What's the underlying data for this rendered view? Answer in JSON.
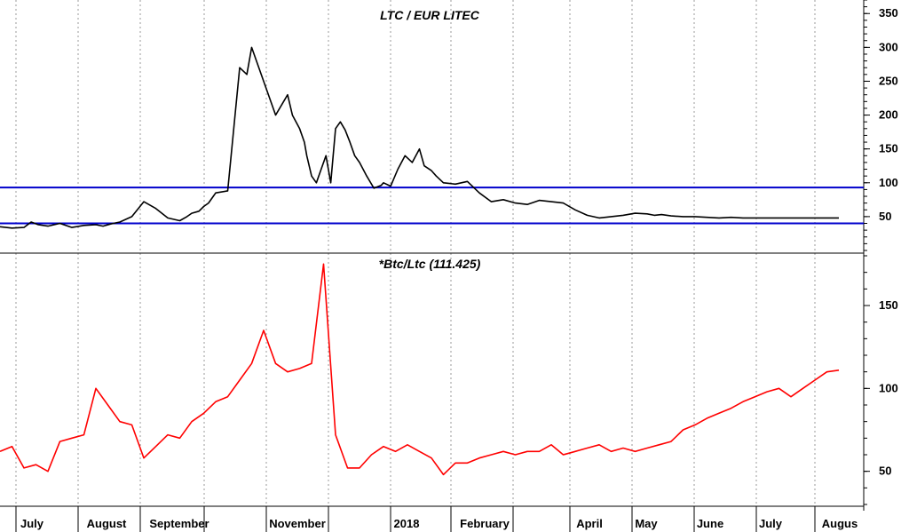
{
  "chart_data": [
    {
      "type": "line",
      "title": "LTC / EUR LITEC",
      "ylim": [
        0,
        370
      ],
      "yticks": [
        50,
        100,
        150,
        200,
        250,
        300,
        350
      ],
      "horizontal_lines": [
        93,
        40
      ],
      "horizontal_line_color": "#0000cc",
      "series": [
        {
          "color": "#000000",
          "x": [
            0,
            0.5,
            1,
            1.3,
            1.6,
            2,
            2.5,
            3,
            3.5,
            4,
            4.3,
            4.6,
            5,
            5.5,
            6,
            6.5,
            7,
            7.5,
            7.8,
            8,
            8.3,
            8.5,
            8.7,
            8.9,
            9,
            9.5,
            10,
            10.3,
            10.5,
            11,
            11.5,
            12,
            12.2,
            12.5,
            12.7,
            12.8,
            13,
            13.2,
            13.4,
            13.6,
            13.8,
            14,
            14.2,
            14.4,
            14.6,
            14.8,
            15,
            15.3,
            15.6,
            15.9,
            16,
            16.3,
            16.6,
            16.9,
            17.2,
            17.5,
            17.7,
            18,
            18.2,
            18.5,
            19,
            19.5,
            20,
            20.5,
            21,
            21.5,
            22,
            22.5,
            23,
            23.5,
            24,
            24.5,
            25,
            25.5,
            26,
            26.5,
            27,
            27.3,
            27.6,
            28,
            28.5,
            29,
            29.5,
            30,
            30.5,
            31,
            31.5,
            32,
            32.5,
            33,
            33.5,
            34,
            34.5,
            35
          ],
          "y": [
            35,
            33,
            34,
            42,
            38,
            36,
            40,
            34,
            37,
            38,
            36,
            39,
            42,
            50,
            72,
            62,
            48,
            44,
            50,
            55,
            58,
            65,
            70,
            80,
            85,
            88,
            270,
            260,
            300,
            250,
            200,
            230,
            200,
            180,
            160,
            140,
            110,
            100,
            120,
            140,
            100,
            180,
            190,
            178,
            160,
            140,
            130,
            110,
            92,
            96,
            100,
            95,
            120,
            140,
            130,
            150,
            125,
            118,
            110,
            100,
            98,
            102,
            85,
            72,
            75,
            70,
            68,
            74,
            72,
            70,
            60,
            52,
            48,
            50,
            52,
            55,
            54,
            52,
            53,
            51,
            50,
            50,
            49,
            48,
            49,
            48,
            48,
            48,
            48,
            48,
            48,
            48,
            48,
            48
          ],
          "label": "LTC / EUR LITEC"
        }
      ]
    },
    {
      "type": "line",
      "title": "*Btc/Ltc (111.425)",
      "ylim": [
        30,
        180
      ],
      "yticks": [
        50,
        100,
        150
      ],
      "series": [
        {
          "color": "#ff0000",
          "x": [
            0,
            0.5,
            1,
            1.5,
            2,
            2.5,
            3,
            3.5,
            4,
            4.5,
            5,
            5.5,
            6,
            6.5,
            7,
            7.5,
            8,
            8.5,
            9,
            9.5,
            10,
            10.5,
            11,
            11.5,
            12,
            12.5,
            13,
            13.5,
            14,
            14.5,
            15,
            15.5,
            16,
            16.5,
            17,
            17.5,
            18,
            18.5,
            19,
            19.5,
            20,
            20.5,
            21,
            21.5,
            22,
            22.5,
            23,
            23.5,
            24,
            24.5,
            25,
            25.5,
            26,
            26.5,
            27,
            27.5,
            28,
            28.5,
            29,
            29.5,
            30,
            30.5,
            31,
            31.5,
            32,
            32.5,
            33,
            33.5,
            34,
            34.5,
            35
          ],
          "y": [
            62,
            65,
            52,
            54,
            50,
            68,
            70,
            72,
            100,
            90,
            80,
            78,
            58,
            65,
            72,
            70,
            80,
            85,
            92,
            95,
            105,
            115,
            135,
            115,
            110,
            112,
            115,
            175,
            72,
            52,
            52,
            60,
            65,
            62,
            66,
            62,
            58,
            48,
            55,
            55,
            58,
            60,
            62,
            60,
            62,
            62,
            66,
            60,
            62,
            64,
            66,
            62,
            64,
            62,
            64,
            66,
            68,
            75,
            78,
            82,
            85,
            88,
            92,
            95,
            98,
            100,
            95,
            100,
            105,
            110,
            111
          ]
        }
      ]
    }
  ],
  "x_axis": {
    "month_labels": [
      "July",
      "August",
      "September",
      "November",
      "2018",
      "February",
      "April",
      "May",
      "June",
      "July",
      "Augus"
    ]
  }
}
